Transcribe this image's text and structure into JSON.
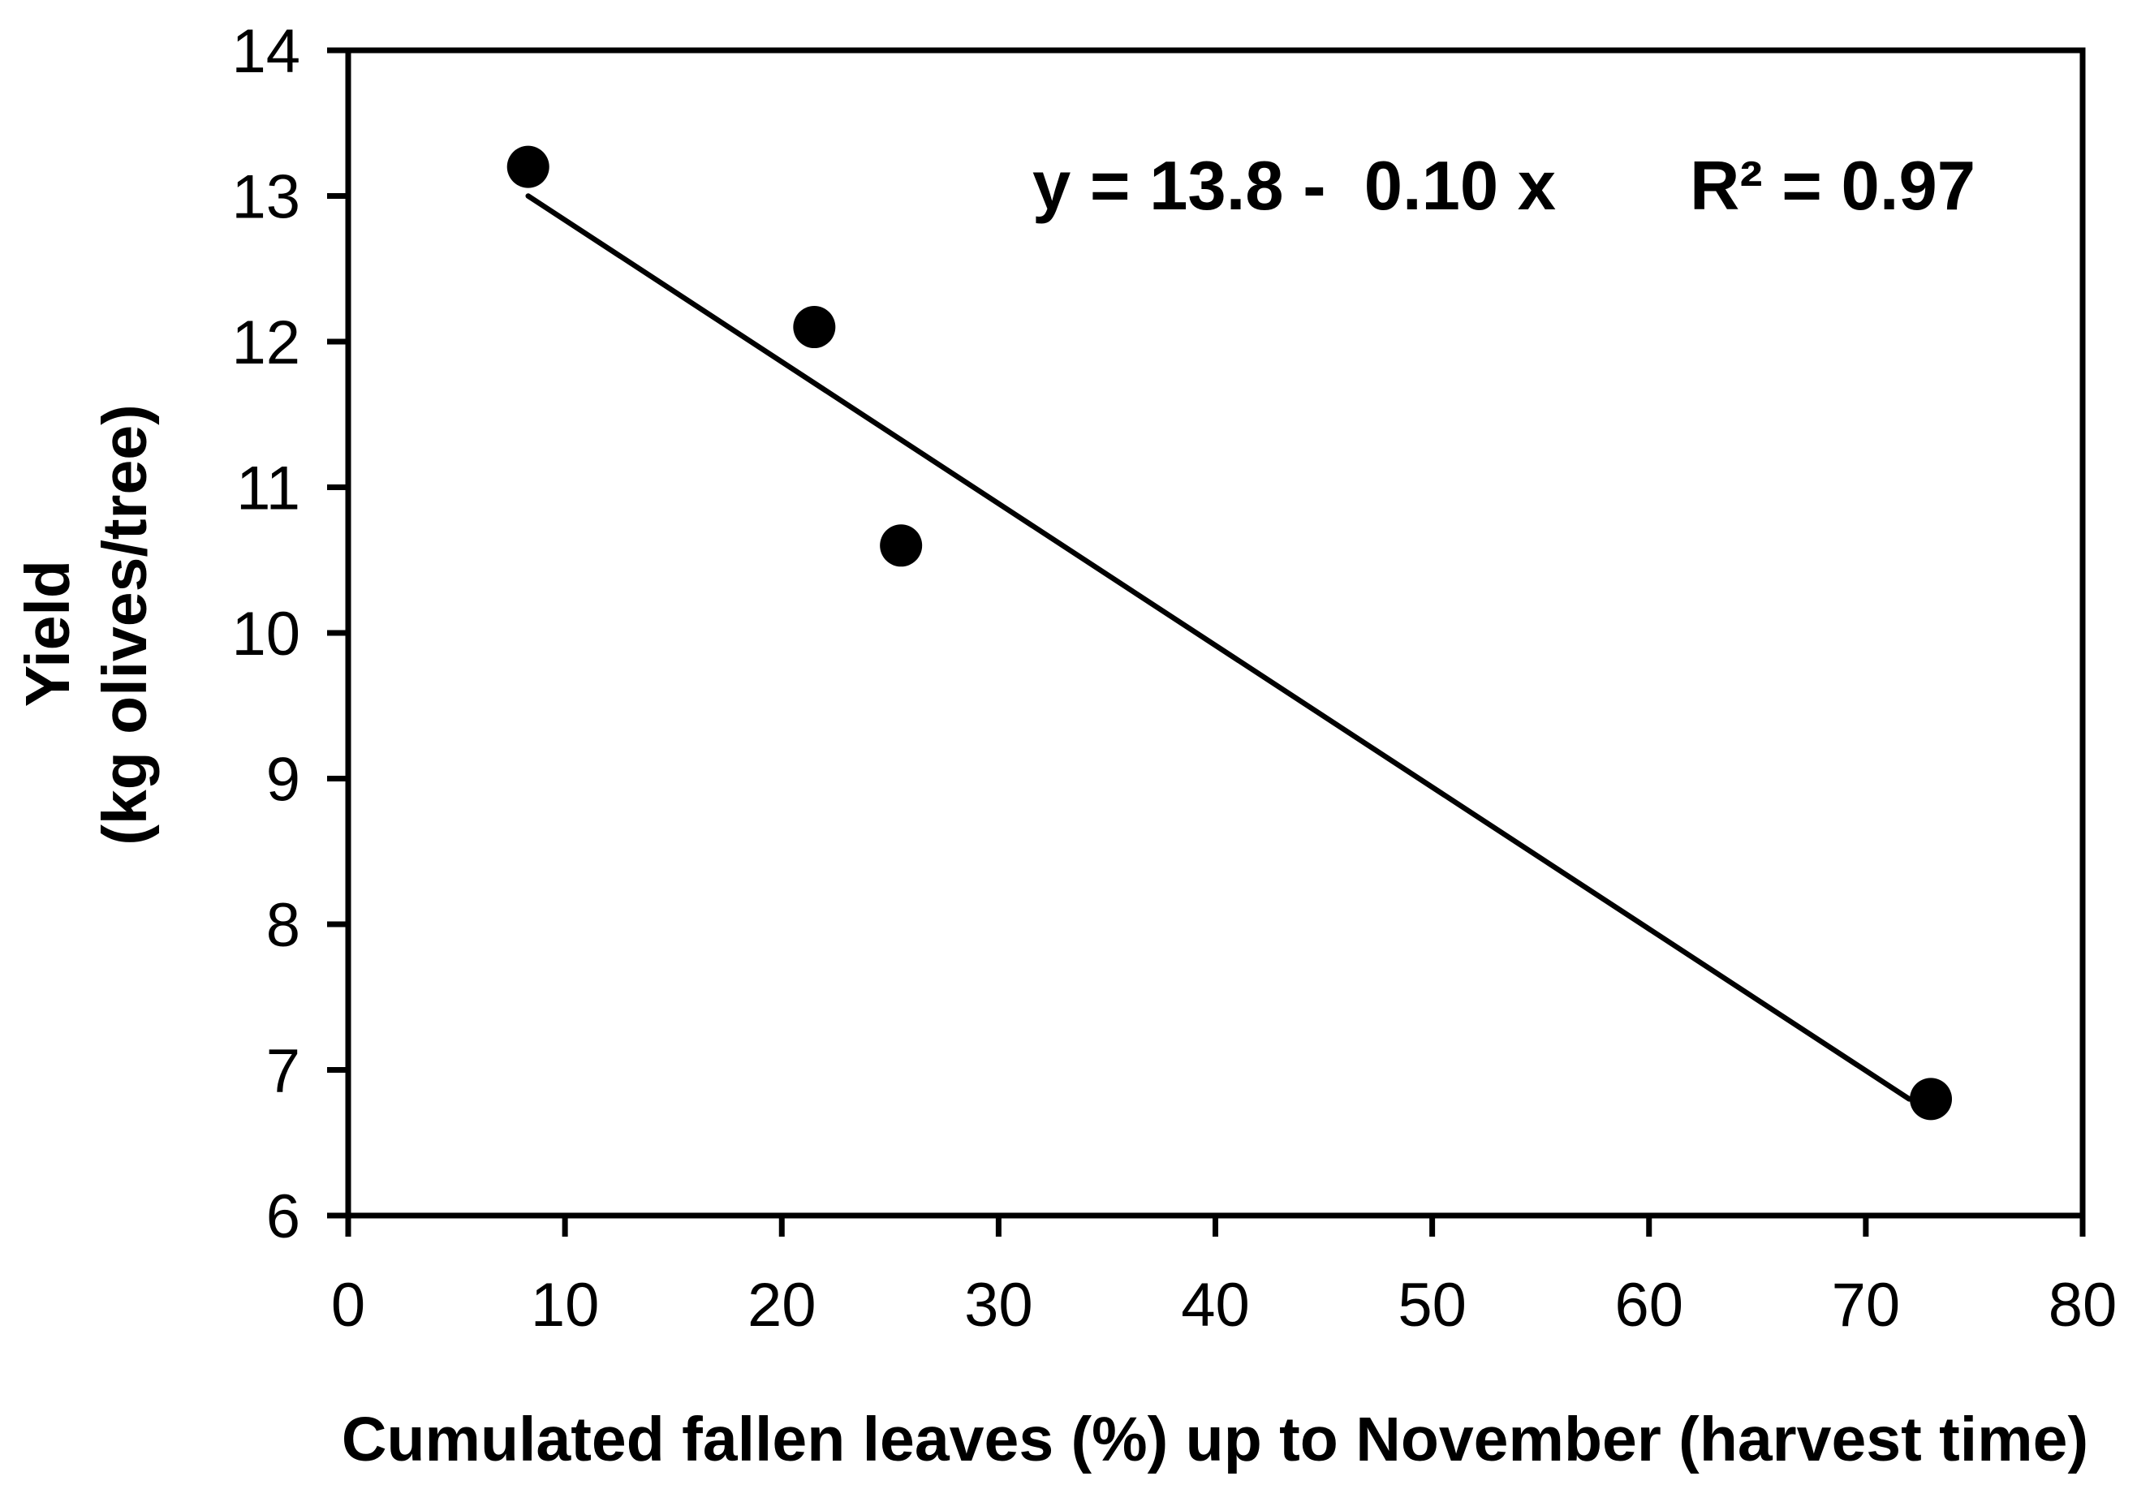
{
  "page": {
    "background_color": "#ffffff",
    "foreground_color": "#000000"
  },
  "chart_data": {
    "type": "scatter",
    "title": "",
    "xlabel": "Cumulated fallen leaves (%) up to November (harvest time)",
    "ylabel_lines": [
      "Yield",
      "(kg olives/tree)"
    ],
    "xlim": [
      0,
      80
    ],
    "ylim": [
      6,
      14
    ],
    "xticks": [
      0,
      10,
      20,
      30,
      40,
      50,
      60,
      70,
      80
    ],
    "yticks": [
      6,
      7,
      8,
      9,
      10,
      11,
      12,
      13,
      14
    ],
    "grid": false,
    "frame": true,
    "legend": "none",
    "marker": {
      "shape": "circle",
      "color": "#000000",
      "radius_px": 26
    },
    "points": [
      {
        "x": 8.3,
        "y": 13.2
      },
      {
        "x": 21.5,
        "y": 12.1
      },
      {
        "x": 25.5,
        "y": 10.6
      },
      {
        "x": 73,
        "y": 6.8
      }
    ],
    "regression": {
      "equation_label": "y = 13.8 -  0.10 x",
      "r2_label": "R² = 0.97",
      "slope": -0.1,
      "intercept": 13.8,
      "r_squared": 0.97,
      "line_segment": {
        "x1": 8.3,
        "y1": 13.0,
        "x2": 72.0,
        "y2": 6.8
      }
    }
  }
}
